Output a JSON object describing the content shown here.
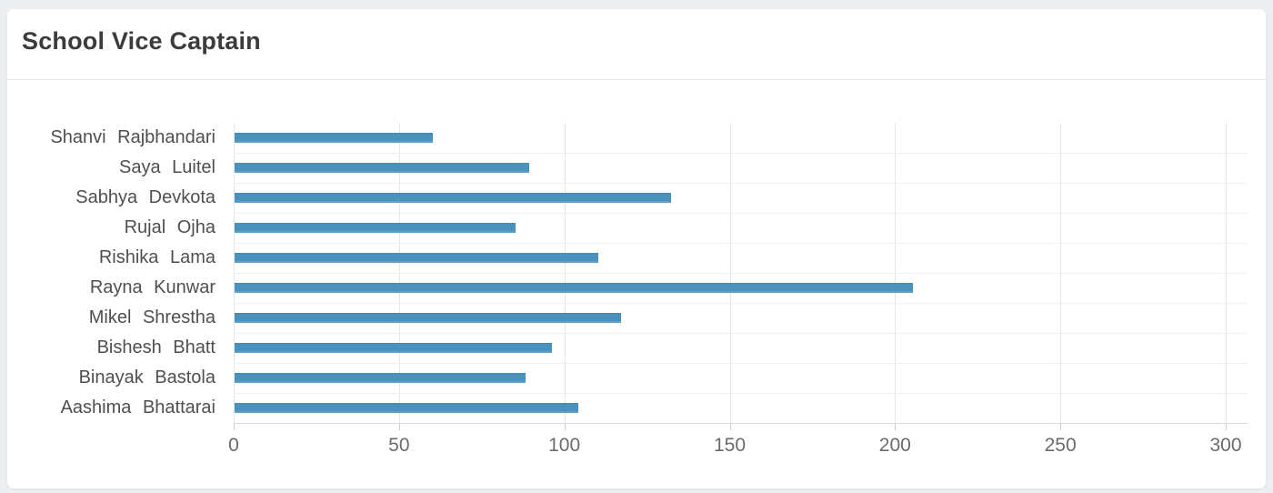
{
  "page": {
    "background_color": "#eceef2",
    "card_color": "#ffffff"
  },
  "header": {
    "title": "School Vice Captain"
  },
  "chart_data": {
    "type": "bar",
    "orientation": "horizontal",
    "title": "School Vice Captain",
    "categories": [
      "Shanvi Rajbhandari",
      "Saya Luitel",
      "Sabhya Devkota",
      "Rujal Ojha",
      "Rishika Lama",
      "Rayna Kunwar",
      "Mikel Shrestha",
      "Bishesh Bhatt",
      "Binayak Bastola",
      "Aashima Bhattarai"
    ],
    "values": [
      60,
      89,
      132,
      85,
      110,
      205,
      117,
      96,
      88,
      104
    ],
    "xlabel": "",
    "ylabel": "",
    "xlim": [
      0,
      300
    ],
    "xticks": [
      0,
      50,
      100,
      150,
      200,
      250,
      300
    ],
    "grid": true,
    "legend": false,
    "bar_color": "#4a92be",
    "gridline_color": "#e6e6e6",
    "axis_label_color": "#6b6b6b",
    "category_label_color": "#4f4f4f"
  }
}
